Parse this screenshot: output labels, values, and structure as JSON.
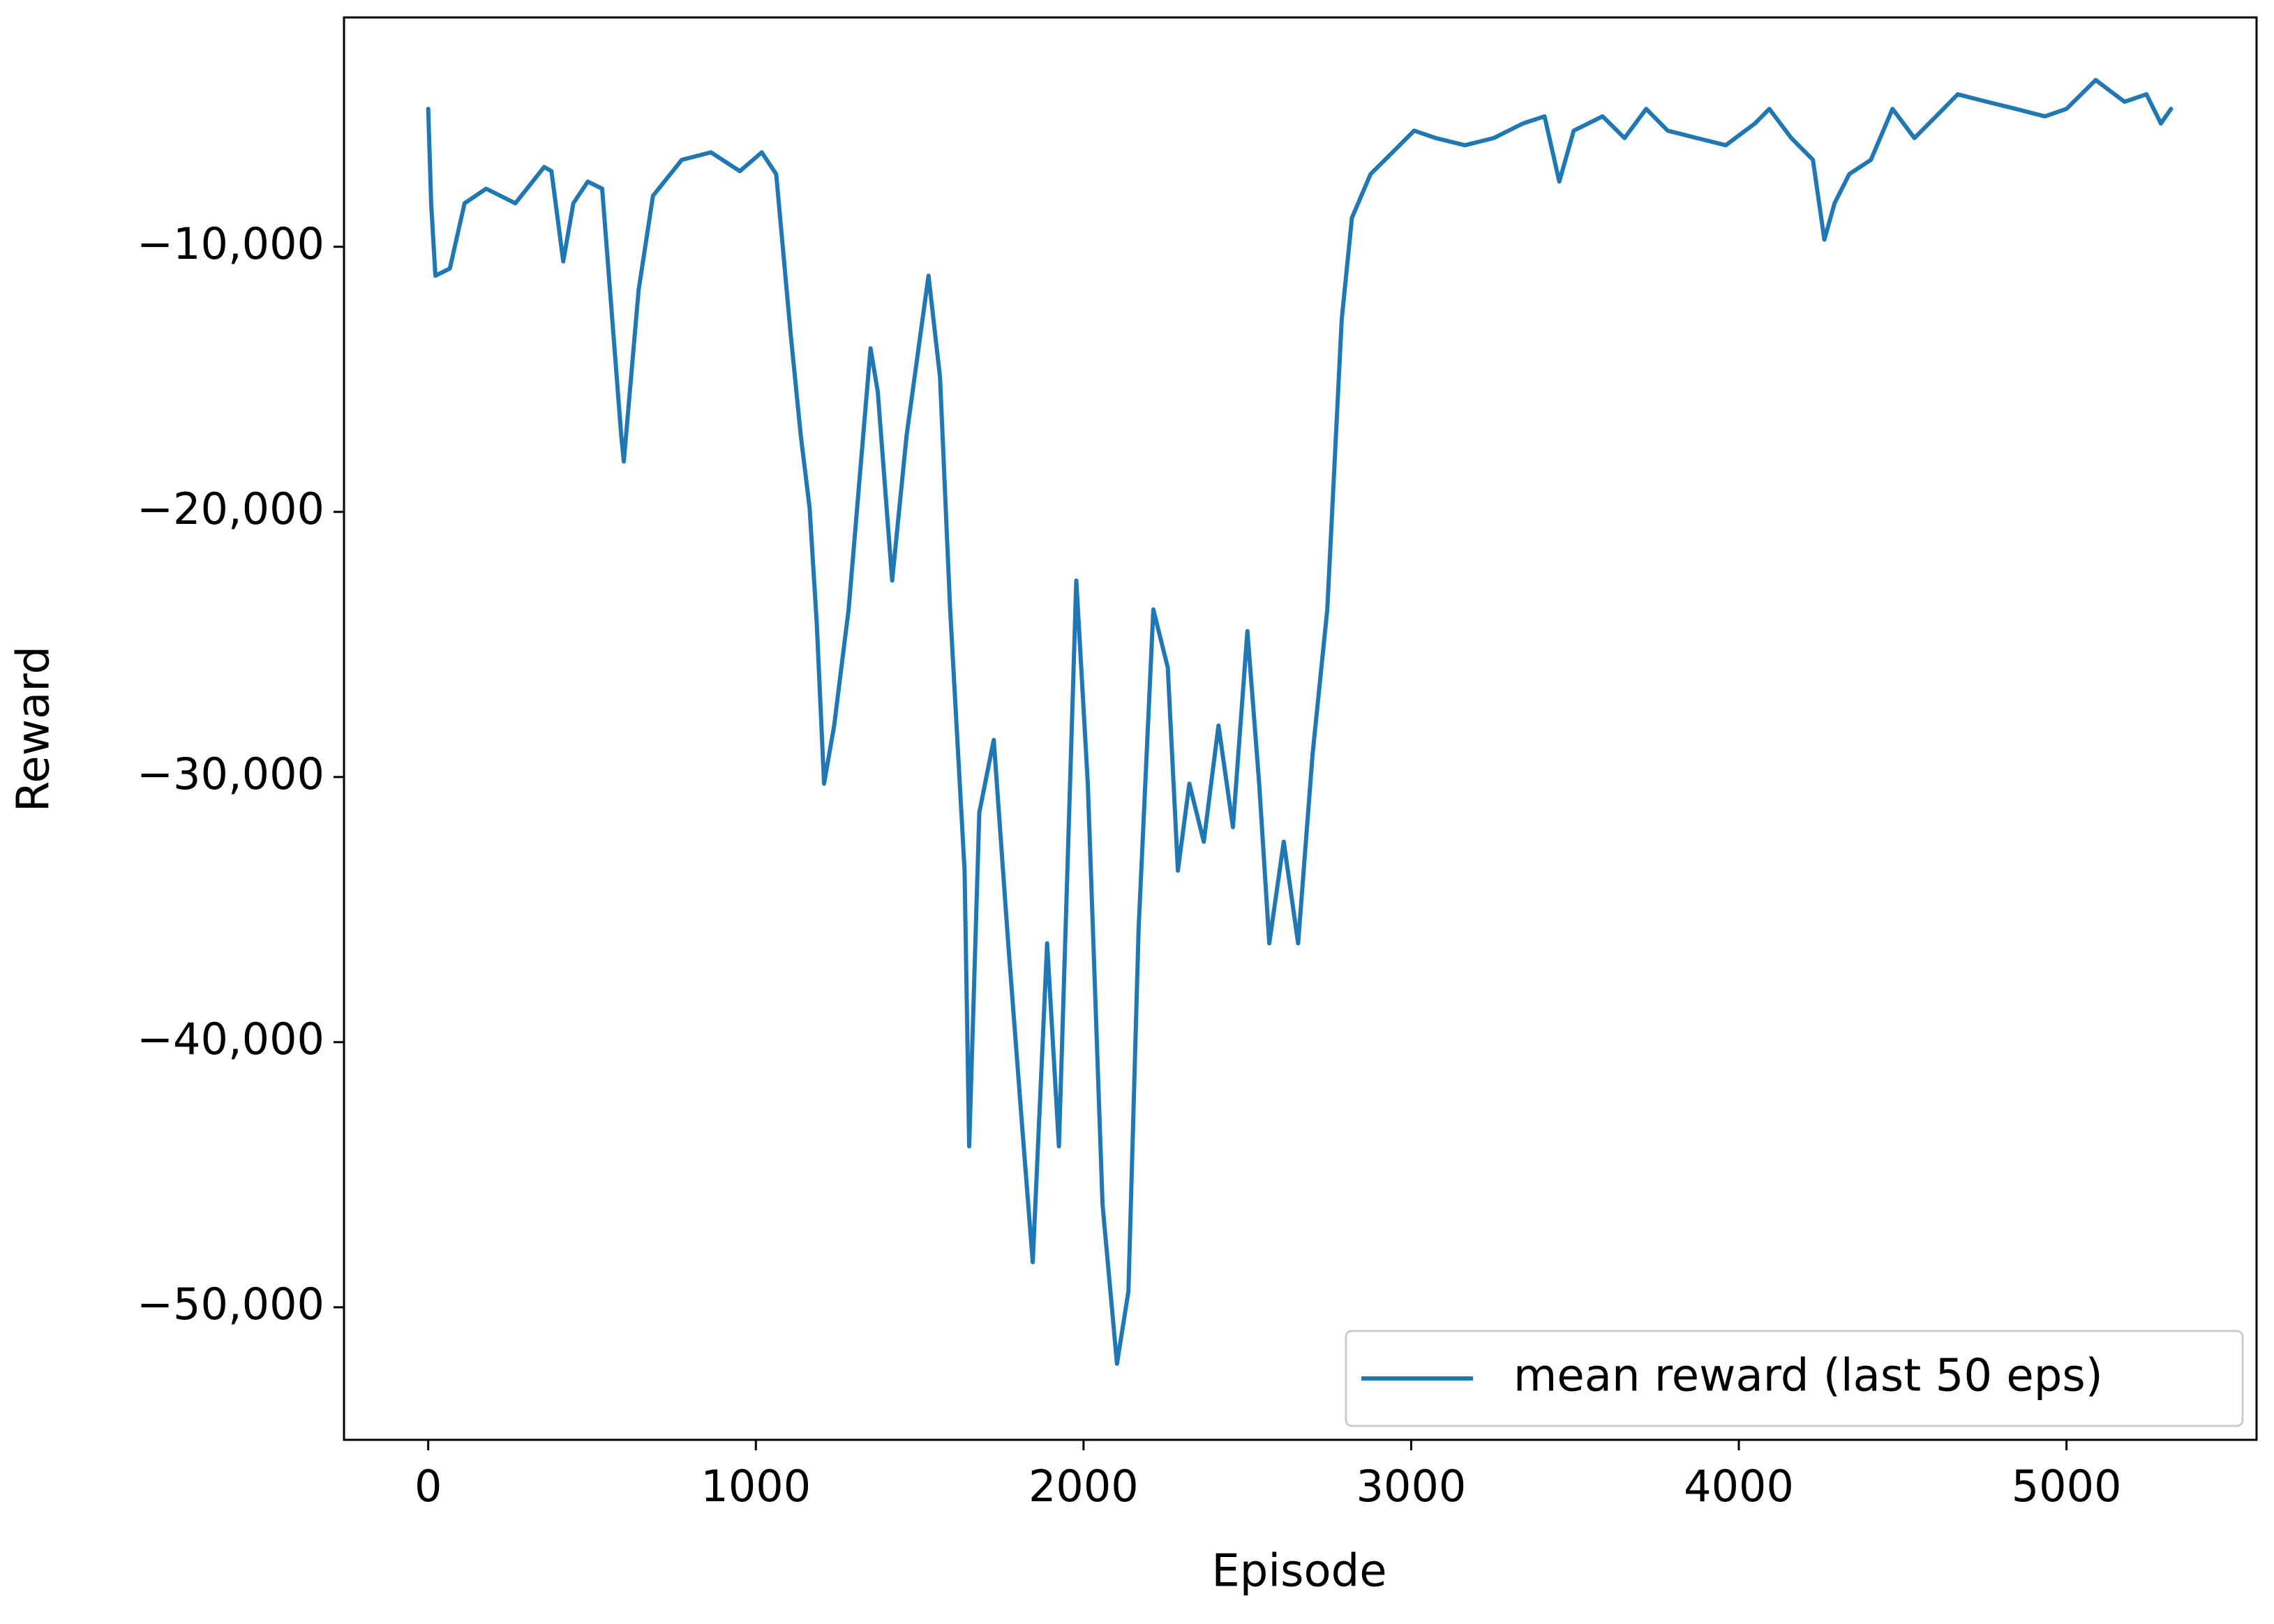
{
  "chart_data": {
    "type": "line",
    "xlabel": "Episode",
    "ylabel": "Reward",
    "x": [
      0,
      9,
      22,
      66,
      111,
      177,
      266,
      354,
      376,
      412,
      443,
      487,
      531,
      589,
      597,
      642,
      686,
      774,
      863,
      951,
      1018,
      1062,
      1106,
      1137,
      1164,
      1186,
      1208,
      1239,
      1261,
      1283,
      1350,
      1372,
      1416,
      1460,
      1527,
      1562,
      1593,
      1637,
      1651,
      1682,
      1726,
      1770,
      1814,
      1845,
      1889,
      1925,
      1978,
      2013,
      2058,
      2102,
      2137,
      2168,
      2213,
      2257,
      2288,
      2323,
      2367,
      2412,
      2456,
      2500,
      2536,
      2567,
      2611,
      2655,
      2699,
      2744,
      2788,
      2819,
      2876,
      2943,
      3009,
      3075,
      3164,
      3252,
      3341,
      3407,
      3452,
      3496,
      3584,
      3651,
      3717,
      3783,
      3872,
      3960,
      4049,
      4093,
      4160,
      4226,
      4261,
      4292,
      4337,
      4403,
      4469,
      4536,
      4602,
      4668,
      4757,
      4845,
      4934,
      5000,
      5089,
      5177,
      5244,
      5288,
      5319
    ],
    "series": [
      {
        "name": "mean reward (last 50 eps)",
        "color": "#1f77b4",
        "values": [
          -4800,
          -8360,
          -11090,
          -10820,
          -8360,
          -7810,
          -8360,
          -6990,
          -7150,
          -10550,
          -8360,
          -7540,
          -7810,
          -17110,
          -18100,
          -11640,
          -8080,
          -6720,
          -6440,
          -7150,
          -6440,
          -7260,
          -13280,
          -17110,
          -19850,
          -24230,
          -30250,
          -28060,
          -25870,
          -23680,
          -13830,
          -15470,
          -22590,
          -17110,
          -11090,
          -14920,
          -23680,
          -33530,
          -43930,
          -31340,
          -28600,
          -36270,
          -43380,
          -48300,
          -36270,
          -43930,
          -22590,
          -30250,
          -46120,
          -52130,
          -49400,
          -35720,
          -23680,
          -25870,
          -33530,
          -30250,
          -32440,
          -28060,
          -31890,
          -24500,
          -30250,
          -36270,
          -32440,
          -36270,
          -29150,
          -23680,
          -12740,
          -8910,
          -7260,
          -6440,
          -5620,
          -5900,
          -6170,
          -5900,
          -5350,
          -5080,
          -7540,
          -5620,
          -5080,
          -5900,
          -4800,
          -5620,
          -5900,
          -6170,
          -5350,
          -4800,
          -5900,
          -6720,
          -9730,
          -8360,
          -7260,
          -6720,
          -4800,
          -5900,
          -5080,
          -4250,
          -4530,
          -4800,
          -5080,
          -4800,
          -3710,
          -4530,
          -4250,
          -5350,
          -4800
        ]
      }
    ],
    "xlim": [
      -257,
      5580
    ],
    "xticks": [
      0,
      1000,
      2000,
      3000,
      4000,
      5000
    ],
    "ylim": [
      -55000,
      -1350
    ],
    "yticks": [
      {
        "value": -50000,
        "label": "−50,000"
      },
      {
        "value": -40000,
        "label": "−40,000"
      },
      {
        "value": -30000,
        "label": "−30,000"
      },
      {
        "value": -20000,
        "label": "−20,000"
      },
      {
        "value": -10000,
        "label": "−10,000"
      }
    ],
    "grid": false,
    "legend": "lower right"
  }
}
